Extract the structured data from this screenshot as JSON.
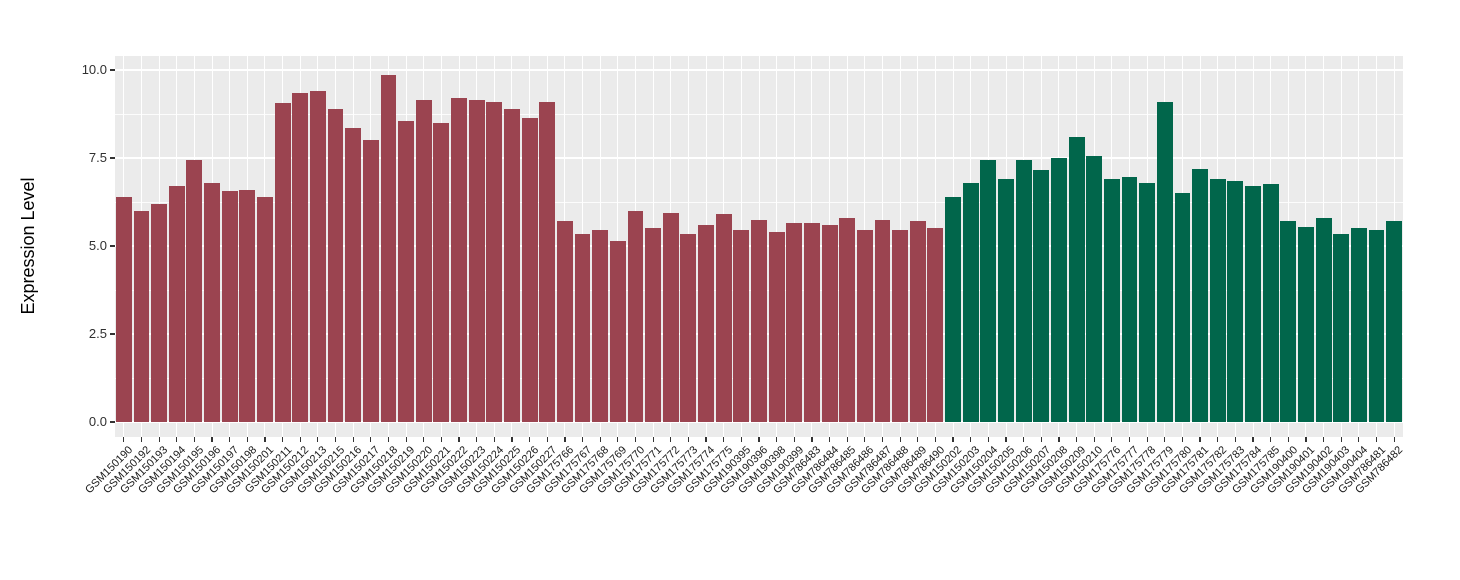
{
  "chart_data": {
    "type": "bar",
    "title": "",
    "xlabel": "",
    "ylabel": "Expression Level",
    "ylim": [
      0,
      10
    ],
    "yticks": [
      "0.0",
      "2.5",
      "5.0",
      "7.5",
      "10.0"
    ],
    "ytick_values": [
      0,
      2.5,
      5,
      7.5,
      10
    ],
    "minor_ytick_values": [
      1.25,
      3.75,
      6.25,
      8.75
    ],
    "legend": "none",
    "grid": "gray panel with white major/minor gridlines, vertical gridline per category",
    "panel_bg": "#ebebeb",
    "background": "#ffffff",
    "group_colors": {
      "group1": "#9b4450",
      "group2": "#01664b"
    },
    "bars": [
      {
        "label": "GSM150190",
        "value": 6.4,
        "group": "group1"
      },
      {
        "label": "GSM150192",
        "value": 6.0,
        "group": "group1"
      },
      {
        "label": "GSM150193",
        "value": 6.2,
        "group": "group1"
      },
      {
        "label": "GSM150194",
        "value": 6.7,
        "group": "group1"
      },
      {
        "label": "GSM150195",
        "value": 7.45,
        "group": "group1"
      },
      {
        "label": "GSM150196",
        "value": 6.8,
        "group": "group1"
      },
      {
        "label": "GSM150197",
        "value": 6.55,
        "group": "group1"
      },
      {
        "label": "GSM150198",
        "value": 6.6,
        "group": "group1"
      },
      {
        "label": "GSM150201",
        "value": 6.4,
        "group": "group1"
      },
      {
        "label": "GSM150211",
        "value": 9.05,
        "group": "group1"
      },
      {
        "label": "GSM150212",
        "value": 9.35,
        "group": "group1"
      },
      {
        "label": "GSM150213",
        "value": 9.4,
        "group": "group1"
      },
      {
        "label": "GSM150215",
        "value": 8.9,
        "group": "group1"
      },
      {
        "label": "GSM150216",
        "value": 8.35,
        "group": "group1"
      },
      {
        "label": "GSM150217",
        "value": 8.0,
        "group": "group1"
      },
      {
        "label": "GSM150218",
        "value": 9.85,
        "group": "group1"
      },
      {
        "label": "GSM150219",
        "value": 8.55,
        "group": "group1"
      },
      {
        "label": "GSM150220",
        "value": 9.15,
        "group": "group1"
      },
      {
        "label": "GSM150221",
        "value": 8.5,
        "group": "group1"
      },
      {
        "label": "GSM150222",
        "value": 9.2,
        "group": "group1"
      },
      {
        "label": "GSM150223",
        "value": 9.15,
        "group": "group1"
      },
      {
        "label": "GSM150224",
        "value": 9.1,
        "group": "group1"
      },
      {
        "label": "GSM150225",
        "value": 8.9,
        "group": "group1"
      },
      {
        "label": "GSM150226",
        "value": 8.65,
        "group": "group1"
      },
      {
        "label": "GSM150227",
        "value": 9.1,
        "group": "group1"
      },
      {
        "label": "GSM175766",
        "value": 5.7,
        "group": "group1"
      },
      {
        "label": "GSM175767",
        "value": 5.35,
        "group": "group1"
      },
      {
        "label": "GSM175768",
        "value": 5.45,
        "group": "group1"
      },
      {
        "label": "GSM175769",
        "value": 5.15,
        "group": "group1"
      },
      {
        "label": "GSM175770",
        "value": 6.0,
        "group": "group1"
      },
      {
        "label": "GSM175771",
        "value": 5.5,
        "group": "group1"
      },
      {
        "label": "GSM175772",
        "value": 5.95,
        "group": "group1"
      },
      {
        "label": "GSM175773",
        "value": 5.35,
        "group": "group1"
      },
      {
        "label": "GSM175774",
        "value": 5.6,
        "group": "group1"
      },
      {
        "label": "GSM175775",
        "value": 5.9,
        "group": "group1"
      },
      {
        "label": "GSM190395",
        "value": 5.45,
        "group": "group1"
      },
      {
        "label": "GSM190396",
        "value": 5.75,
        "group": "group1"
      },
      {
        "label": "GSM190398",
        "value": 5.4,
        "group": "group1"
      },
      {
        "label": "GSM190399",
        "value": 5.65,
        "group": "group1"
      },
      {
        "label": "GSM786483",
        "value": 5.65,
        "group": "group1"
      },
      {
        "label": "GSM786484",
        "value": 5.6,
        "group": "group1"
      },
      {
        "label": "GSM786485",
        "value": 5.8,
        "group": "group1"
      },
      {
        "label": "GSM786486",
        "value": 5.45,
        "group": "group1"
      },
      {
        "label": "GSM786487",
        "value": 5.75,
        "group": "group1"
      },
      {
        "label": "GSM786488",
        "value": 5.45,
        "group": "group1"
      },
      {
        "label": "GSM786489",
        "value": 5.7,
        "group": "group1"
      },
      {
        "label": "GSM786490",
        "value": 5.5,
        "group": "group1"
      },
      {
        "label": "GSM150202",
        "value": 6.4,
        "group": "group2"
      },
      {
        "label": "GSM150203",
        "value": 6.8,
        "group": "group2"
      },
      {
        "label": "GSM150204",
        "value": 7.45,
        "group": "group2"
      },
      {
        "label": "GSM150205",
        "value": 6.9,
        "group": "group2"
      },
      {
        "label": "GSM150206",
        "value": 7.45,
        "group": "group2"
      },
      {
        "label": "GSM150207",
        "value": 7.15,
        "group": "group2"
      },
      {
        "label": "GSM150208",
        "value": 7.5,
        "group": "group2"
      },
      {
        "label": "GSM150209",
        "value": 8.1,
        "group": "group2"
      },
      {
        "label": "GSM150210",
        "value": 7.55,
        "group": "group2"
      },
      {
        "label": "GSM175776",
        "value": 6.9,
        "group": "group2"
      },
      {
        "label": "GSM175777",
        "value": 6.95,
        "group": "group2"
      },
      {
        "label": "GSM175778",
        "value": 6.8,
        "group": "group2"
      },
      {
        "label": "GSM175779",
        "value": 9.1,
        "group": "group2"
      },
      {
        "label": "GSM175780",
        "value": 6.5,
        "group": "group2"
      },
      {
        "label": "GSM175781",
        "value": 7.2,
        "group": "group2"
      },
      {
        "label": "GSM175782",
        "value": 6.9,
        "group": "group2"
      },
      {
        "label": "GSM175783",
        "value": 6.85,
        "group": "group2"
      },
      {
        "label": "GSM175784",
        "value": 6.7,
        "group": "group2"
      },
      {
        "label": "GSM175785",
        "value": 6.75,
        "group": "group2"
      },
      {
        "label": "GSM190400",
        "value": 5.7,
        "group": "group2"
      },
      {
        "label": "GSM190401",
        "value": 5.55,
        "group": "group2"
      },
      {
        "label": "GSM190402",
        "value": 5.8,
        "group": "group2"
      },
      {
        "label": "GSM190403",
        "value": 5.35,
        "group": "group2"
      },
      {
        "label": "GSM190404",
        "value": 5.5,
        "group": "group2"
      },
      {
        "label": "GSM786481",
        "value": 5.45,
        "group": "group2"
      },
      {
        "label": "GSM786482",
        "value": 5.7,
        "group": "group2"
      }
    ]
  }
}
